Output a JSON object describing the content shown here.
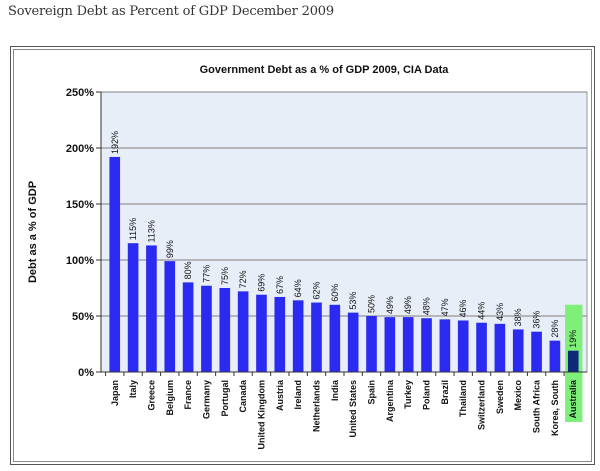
{
  "page": {
    "title": "Sovereign Debt as Percent of GDP December 2009"
  },
  "colors": {
    "bar": "#2a2af0",
    "highlight_bar": "#0d2a7a",
    "highlight_bg": "#7ef07a",
    "plot_bg": "#e8eef8",
    "gridline": "#7f7f7f"
  },
  "chart_data": {
    "type": "bar",
    "title": "Government Debt as a % of GDP 2009, CIA Data",
    "xlabel": "",
    "ylabel": "Debt as a % of GDP",
    "ylim": [
      0,
      250
    ],
    "yticks": [
      0,
      50,
      100,
      150,
      200,
      250
    ],
    "ytick_labels": [
      "0%",
      "50%",
      "100%",
      "150%",
      "200%",
      "250%"
    ],
    "grid": true,
    "highlight": "Australia",
    "categories": [
      "Japan",
      "Italy",
      "Greece",
      "Belgium",
      "France",
      "Germany",
      "Portugal",
      "Canada",
      "United Kingdom",
      "Austria",
      "Ireland",
      "Netherlands",
      "India",
      "United States",
      "Spain",
      "Argentina",
      "Turkey",
      "Poland",
      "Brazil",
      "Thailand",
      "Switzerland",
      "Sweden",
      "Mexico",
      "South Africa",
      "Korea, South",
      "Australia"
    ],
    "values": [
      192,
      115,
      113,
      99,
      80,
      77,
      75,
      72,
      69,
      67,
      64,
      62,
      60,
      53,
      50,
      49,
      49,
      48,
      47,
      46,
      44,
      43,
      38,
      36,
      28,
      19
    ],
    "data_labels": [
      "192%",
      "115%",
      "113%",
      "99%",
      "80%",
      "77%",
      "75%",
      "72%",
      "69%",
      "67%",
      "64%",
      "62%",
      "60%",
      "53%",
      "50%",
      "49%",
      "49%",
      "48%",
      "47%",
      "46%",
      "44%",
      "43%",
      "38%",
      "36%",
      "28%",
      "19%"
    ]
  }
}
